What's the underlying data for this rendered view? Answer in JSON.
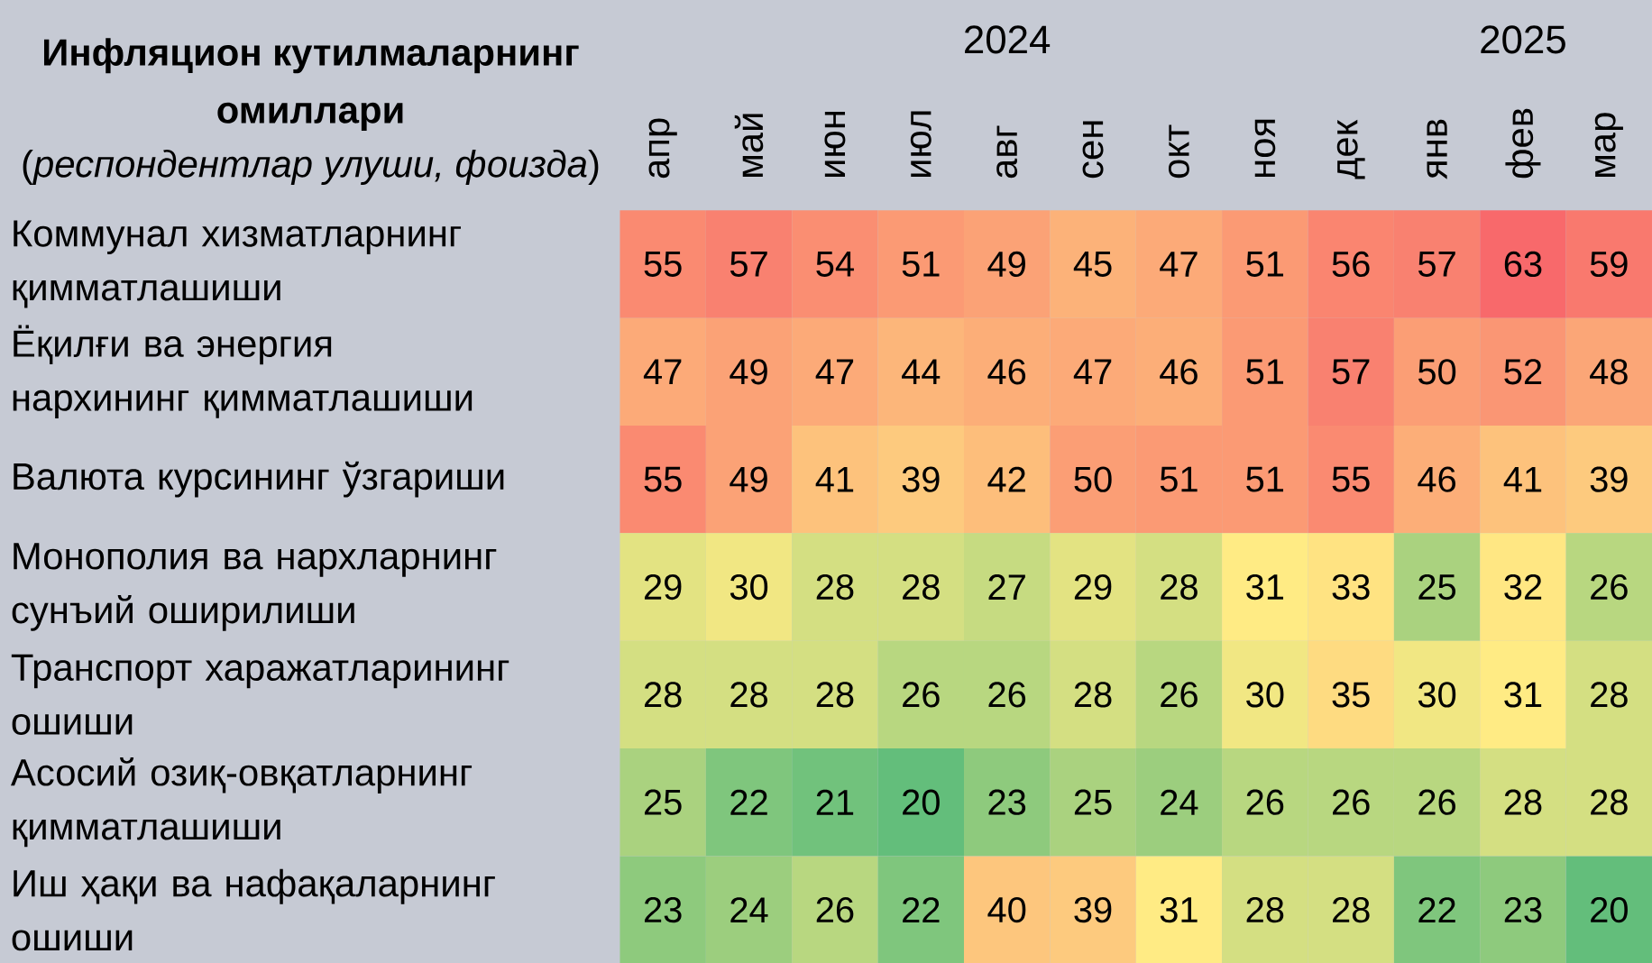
{
  "chart_data": {
    "type": "heatmap",
    "title": "Инфляцион кутилмаларнинг омиллари",
    "subtitle": "(*респондентлар улуши, фоизда*)",
    "annotations": [
      "2024",
      "2025"
    ],
    "categories": [
      "апр",
      "май",
      "июн",
      "июл",
      "авг",
      "сен",
      "окт",
      "ноя",
      "дек",
      "янв",
      "фев",
      "мар"
    ],
    "y_categories": [
      "Коммунал хизматларнинг қимматлашиши",
      "Ёқилғи ва энергия нархининг қимматлашиши",
      "Валюта курсининг ўзгариши",
      "Монополия ва нархларнинг сунъий оширилиши",
      "Транспорт харажатларининг ошиши",
      "Асосий озиқ-овқатларнинг қимматлашиши",
      "Иш ҳақи ва нафақаларнинг ошиши"
    ],
    "cells": [
      [
        55,
        57,
        54,
        51,
        49,
        45,
        47,
        51,
        56,
        57,
        63,
        59
      ],
      [
        47,
        49,
        47,
        44,
        46,
        47,
        46,
        51,
        57,
        50,
        52,
        48
      ],
      [
        55,
        49,
        41,
        39,
        42,
        50,
        51,
        51,
        55,
        46,
        41,
        39
      ],
      [
        29,
        30,
        28,
        28,
        27,
        29,
        28,
        31,
        33,
        25,
        32,
        26
      ],
      [
        28,
        28,
        28,
        26,
        26,
        28,
        26,
        30,
        35,
        30,
        31,
        28
      ],
      [
        25,
        22,
        21,
        20,
        23,
        25,
        24,
        26,
        26,
        26,
        28,
        28
      ],
      [
        23,
        24,
        26,
        22,
        40,
        39,
        31,
        28,
        28,
        22,
        23,
        20
      ]
    ],
    "data_labels": true
  }
}
